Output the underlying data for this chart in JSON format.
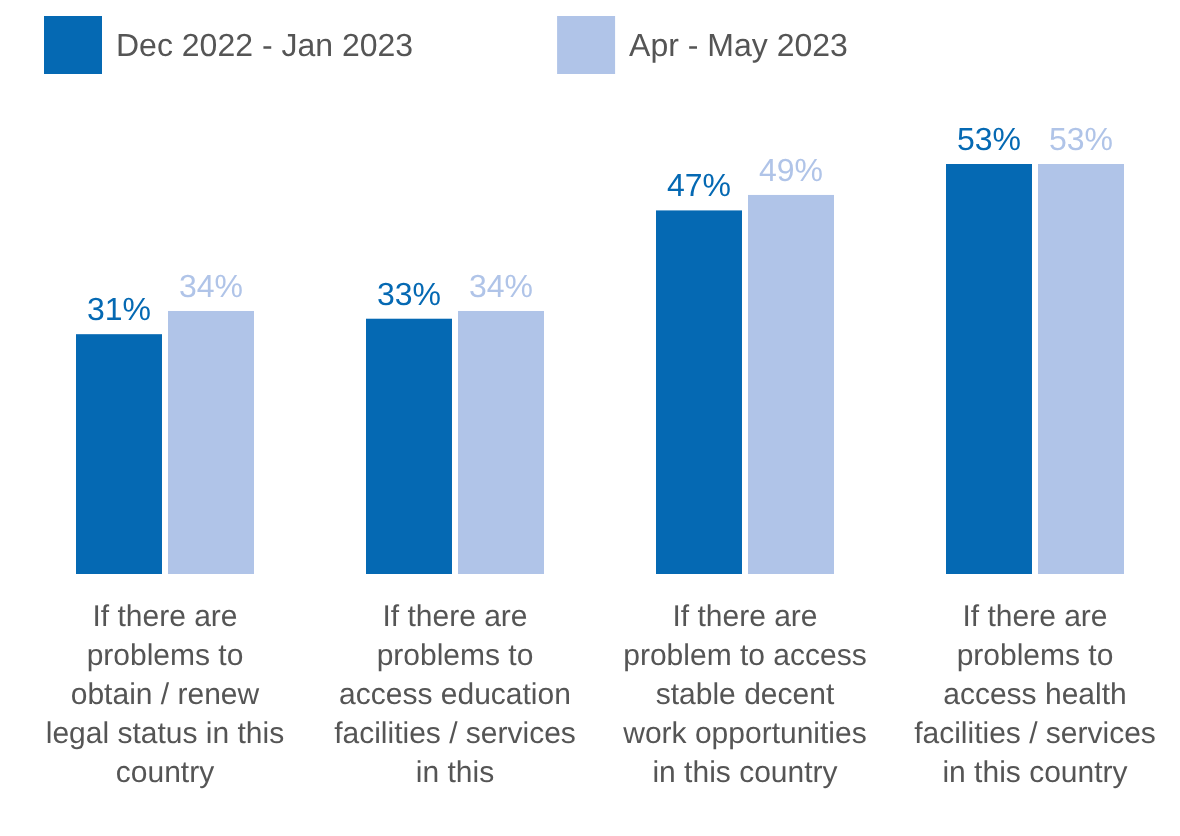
{
  "chart_data": {
    "type": "bar",
    "categories": [
      "If there are problems to obtain / renew legal status in this country",
      "If there are problems to access education facilities / services in this",
      "If there are problem to access stable decent work opportunities in this country",
      "If there are problems to access health facilities / services in this country"
    ],
    "series": [
      {
        "name": "Dec 2022 - Jan 2023",
        "color": "#0569b3",
        "values": [
          31,
          33,
          47,
          53
        ],
        "value_labels": [
          "31%",
          "33%",
          "47%",
          "53%"
        ]
      },
      {
        "name": "Apr - May 2023",
        "color": "#b0c4e8",
        "values": [
          34,
          34,
          49,
          53
        ],
        "value_labels": [
          "34%",
          "34%",
          "49%",
          "53%"
        ]
      }
    ],
    "legend": "top left"
  }
}
